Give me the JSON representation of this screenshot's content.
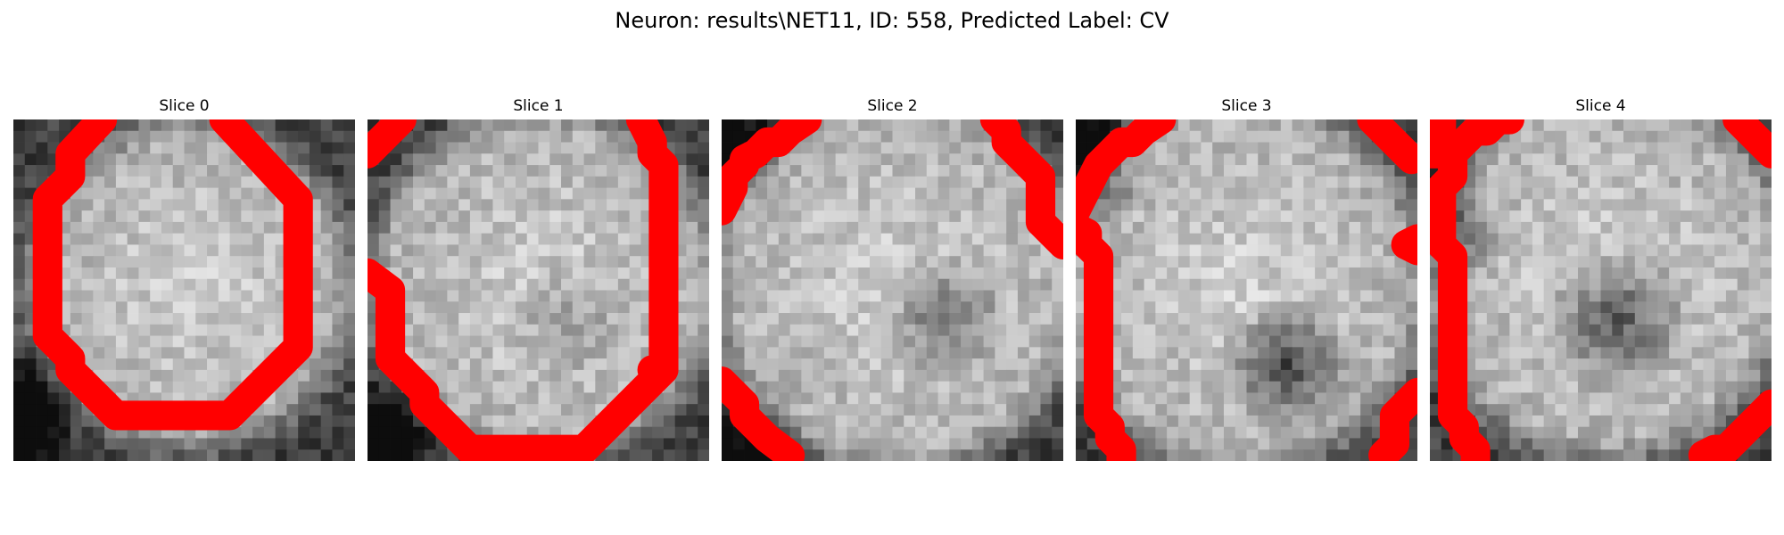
{
  "figure": {
    "title": "Neuron: results\\NET11, ID: 558, Predicted Label: CV"
  },
  "style": {
    "contour_color": "#ff0000"
  },
  "panels": [
    {
      "title": "Slice 0"
    },
    {
      "title": "Slice 1"
    },
    {
      "title": "Slice 2"
    },
    {
      "title": "Slice 3"
    },
    {
      "title": "Slice 4"
    }
  ]
}
